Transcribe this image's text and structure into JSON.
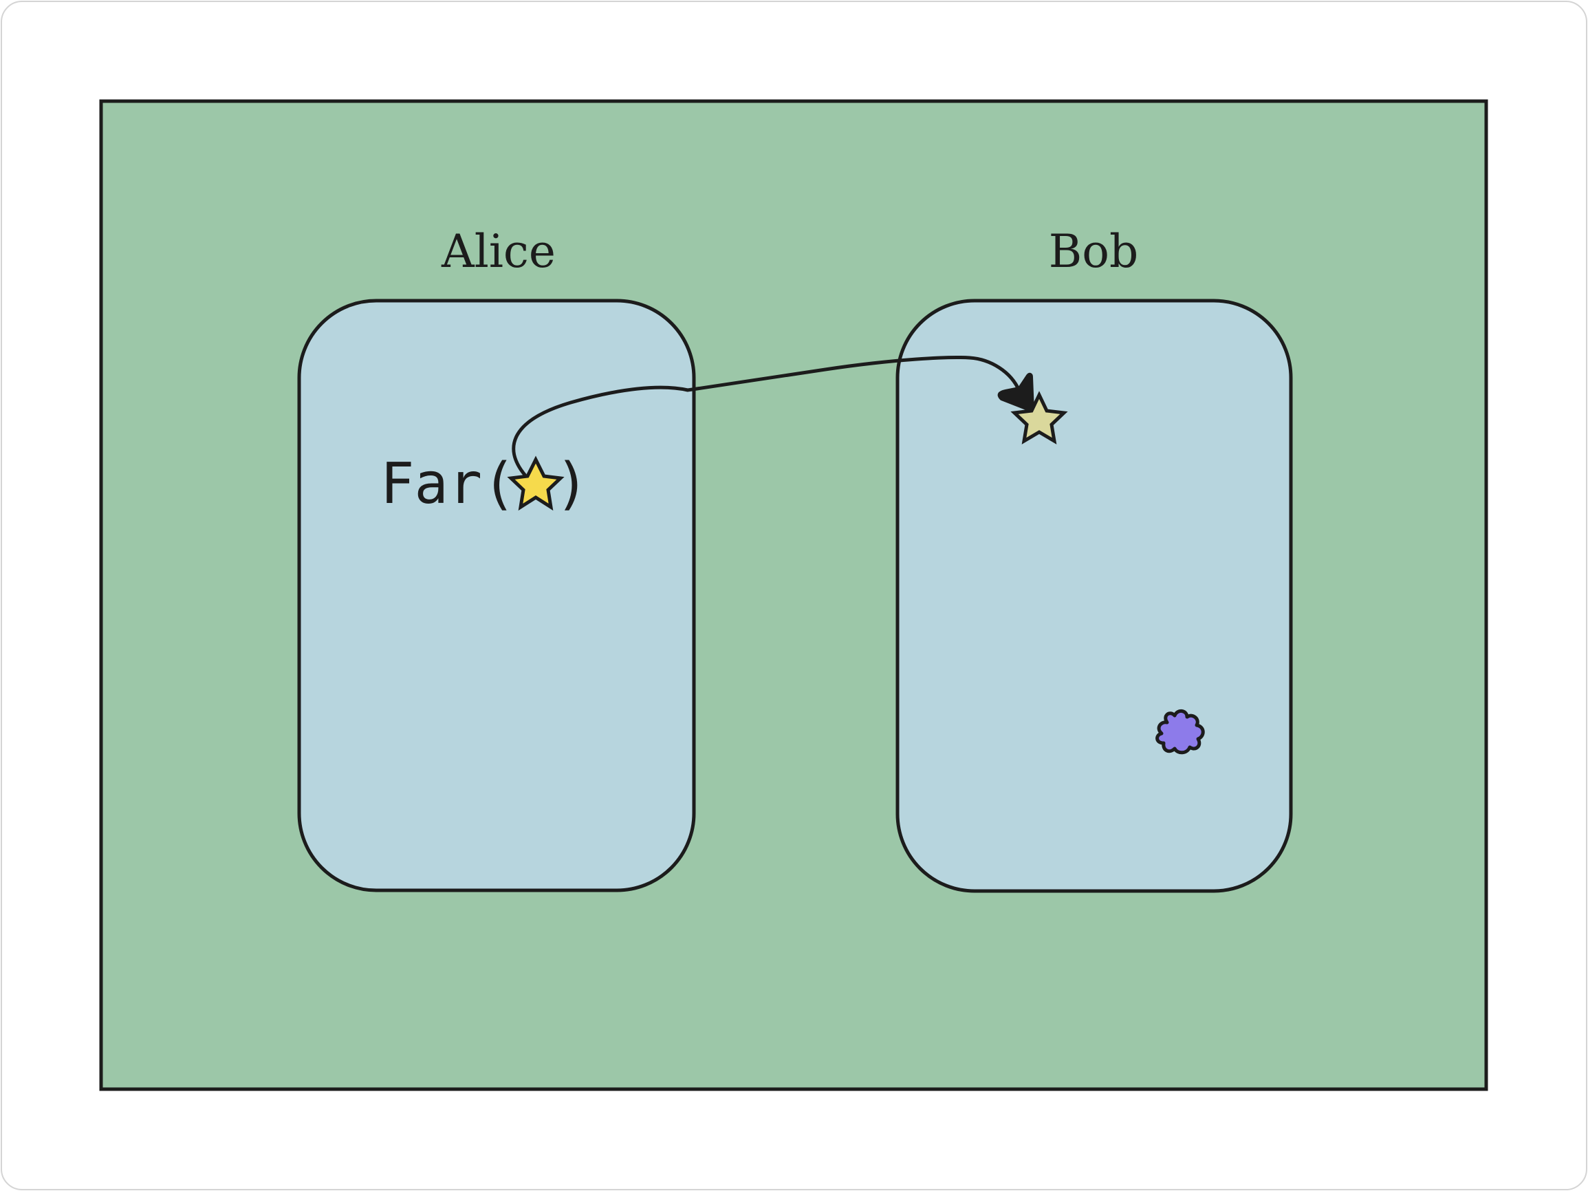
{
  "diagram": {
    "colors": {
      "frame_fill": "#9cc7a8",
      "box_fill": "#b7d5de",
      "stroke": "#1c1c1c",
      "page_border": "#d4d4d4",
      "star_local": "#f6da4c",
      "star_remote": "#dad89c",
      "blob": "#8d7bea"
    },
    "alice": {
      "label": "Alice",
      "code_prefix": "Far(",
      "code_suffix": ")"
    },
    "bob": {
      "label": "Bob"
    },
    "icons": {
      "alice_star": "star-icon",
      "bob_star": "star-icon",
      "bob_blob": "blob-icon"
    }
  }
}
